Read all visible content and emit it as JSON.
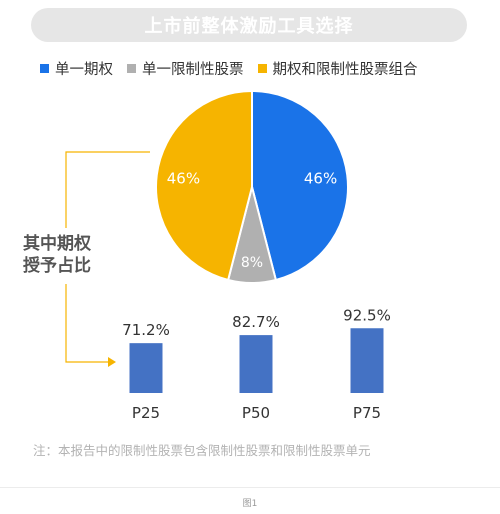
{
  "title": "上市前整体激励工具选择",
  "legend": [
    {
      "label": "单一期权",
      "color": "#1a73e8"
    },
    {
      "label": "单一限制性股票",
      "color": "#b0b0b0"
    },
    {
      "label": "期权和限制性股票组合",
      "color": "#f6b400"
    }
  ],
  "bracket_label": {
    "line1": "其中期权",
    "line2": "授予占比"
  },
  "footnote": "注：本报告中的限制性股票包含限制性股票和限制性股票单元",
  "caption": "图1",
  "colors": {
    "option": "#1a73e8",
    "restricted": "#b0b0b0",
    "combo": "#f6b400",
    "bar": "#4472c4",
    "bracket": "#f6b400"
  },
  "chart_data": [
    {
      "type": "pie",
      "labels": [
        "单一期权",
        "单一限制性股票",
        "期权和限制性股票组合"
      ],
      "values": [
        46,
        8,
        46
      ],
      "value_labels": [
        "46%",
        "8%",
        "46%"
      ],
      "colors": [
        "#1a73e8",
        "#b0b0b0",
        "#f6b400"
      ]
    },
    {
      "type": "bar",
      "categories": [
        "P25",
        "P50",
        "P75"
      ],
      "values": [
        71.2,
        82.7,
        92.5
      ],
      "value_labels": [
        "71.2%",
        "82.7%",
        "92.5%"
      ],
      "ylim": [
        0,
        100
      ]
    }
  ]
}
